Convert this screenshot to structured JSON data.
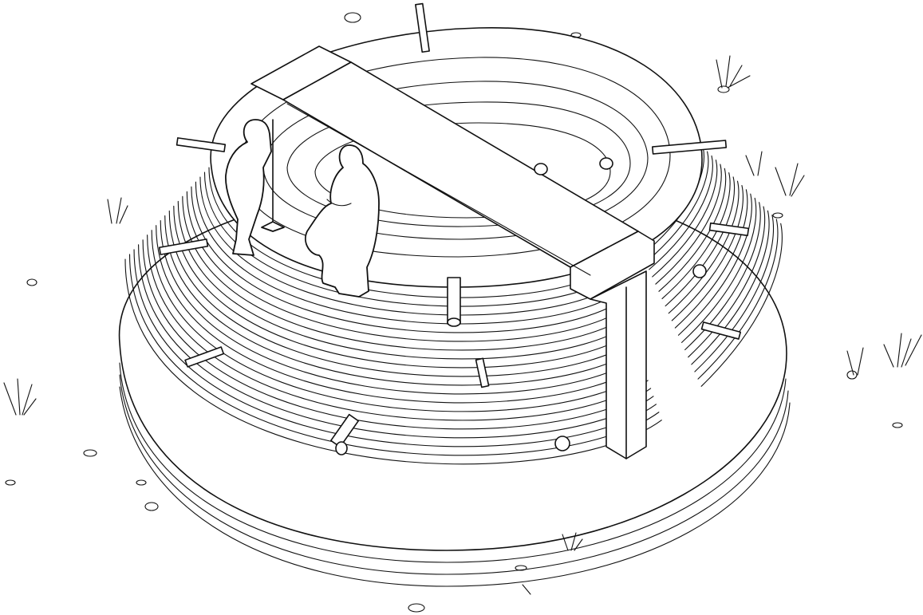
{
  "illustration": {
    "subject": "",
    "style": "black-ink line drawing on white",
    "colors": {
      "ink": "#111111",
      "paper": "#ffffff"
    }
  }
}
